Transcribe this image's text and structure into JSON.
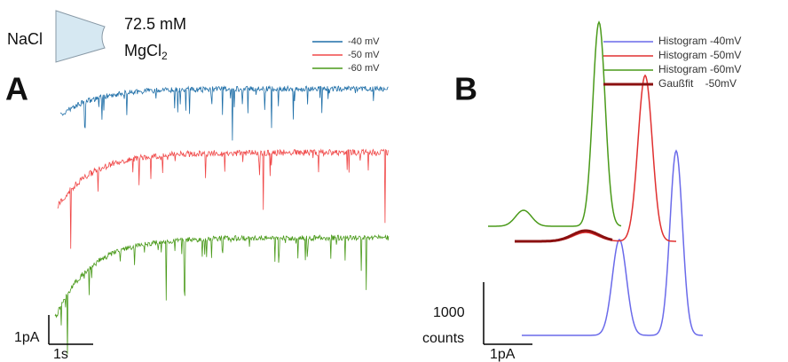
{
  "panel_a": {
    "label": "A",
    "inlet": "NaCl",
    "concentration": "72.5 mM",
    "salt": "MgCl",
    "salt_subscript": "2",
    "legend": [
      "-40 mV",
      "-50 mV",
      "-60 mV"
    ],
    "scale_y": "1pA",
    "scale_x": "1s"
  },
  "panel_b": {
    "label": "B",
    "legend": [
      "Histogram -40mV",
      "Histogram -50mV",
      "Histogram -60mV",
      "Gaußfit    -50mV"
    ],
    "scale_y_value": "1000",
    "scale_y_unit": "counts",
    "scale_x": "1pA"
  }
}
